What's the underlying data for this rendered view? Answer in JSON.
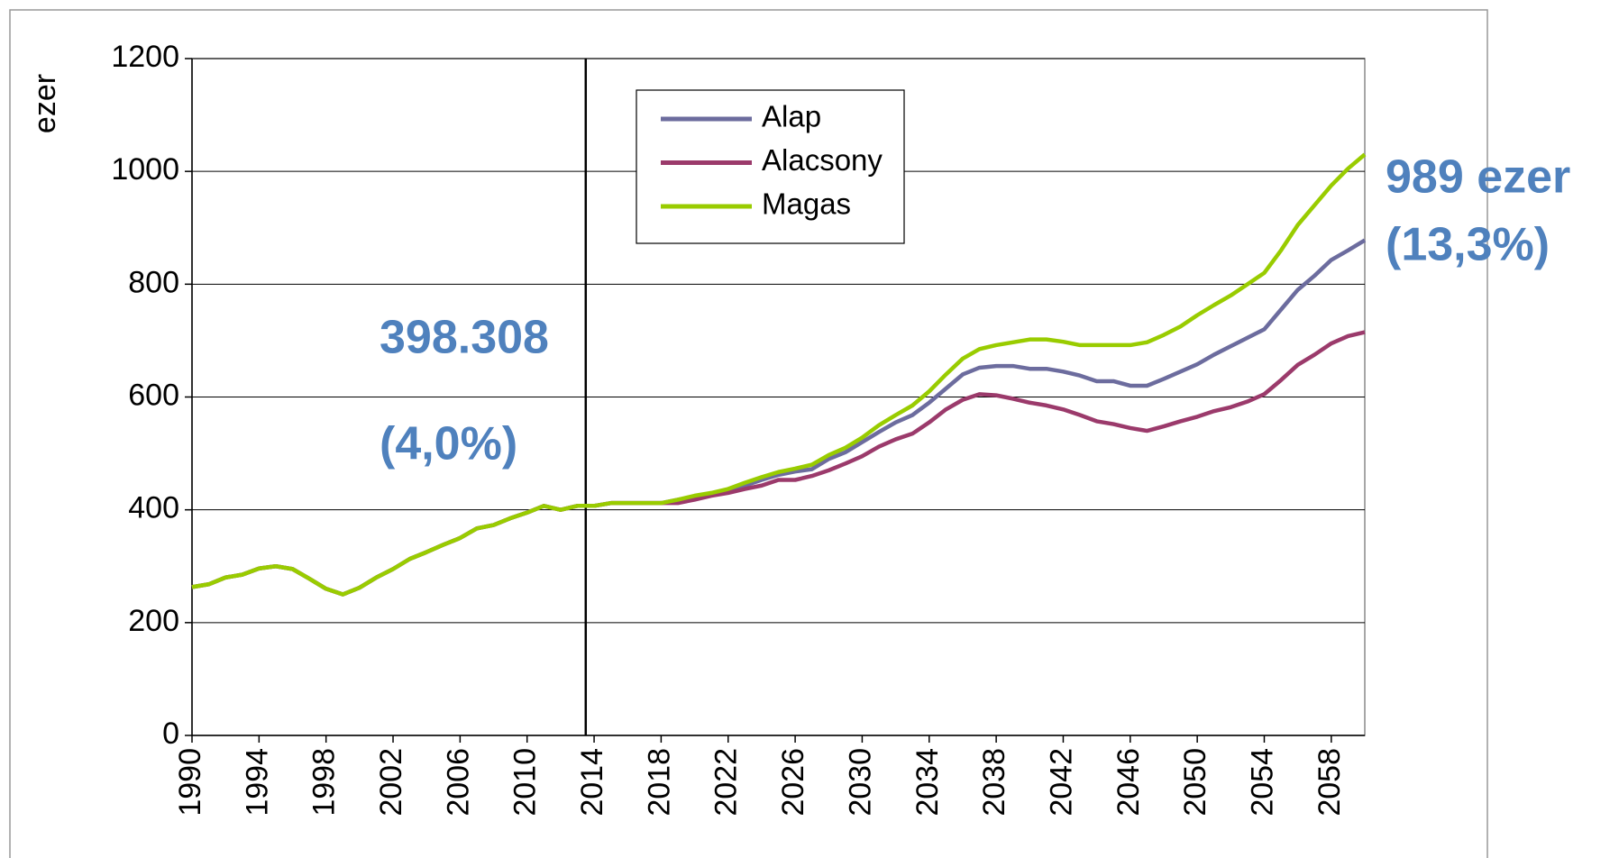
{
  "chart_data": {
    "type": "line",
    "ylabel": "ezer",
    "x": [
      1990,
      1991,
      1992,
      1993,
      1994,
      1995,
      1996,
      1997,
      1998,
      1999,
      2000,
      2001,
      2002,
      2003,
      2004,
      2005,
      2006,
      2007,
      2008,
      2009,
      2010,
      2011,
      2012,
      2013,
      2014,
      2015,
      2016,
      2017,
      2018,
      2019,
      2020,
      2021,
      2022,
      2023,
      2024,
      2025,
      2026,
      2027,
      2028,
      2029,
      2030,
      2031,
      2032,
      2033,
      2034,
      2035,
      2036,
      2037,
      2038,
      2039,
      2040,
      2041,
      2042,
      2043,
      2044,
      2045,
      2046,
      2047,
      2048,
      2049,
      2050,
      2051,
      2052,
      2053,
      2054,
      2055,
      2056,
      2057,
      2058,
      2059,
      2060
    ],
    "series": [
      {
        "name": "Alap",
        "color": "#6c6c9e",
        "values": [
          263,
          268,
          280,
          285,
          296,
          300,
          295,
          278,
          260,
          250,
          262,
          280,
          295,
          313,
          325,
          338,
          350,
          367,
          373,
          385,
          395,
          407,
          400,
          407,
          407,
          412,
          412,
          412,
          412,
          418,
          422,
          428,
          435,
          443,
          453,
          462,
          468,
          472,
          490,
          502,
          520,
          538,
          555,
          568,
          590,
          615,
          640,
          652,
          655,
          655,
          650,
          650,
          645,
          638,
          628,
          628,
          620,
          620,
          632,
          645,
          658,
          675,
          690,
          705,
          720,
          755,
          790,
          815,
          843,
          860,
          878
        ]
      },
      {
        "name": "Alacsony",
        "color": "#9b3a6b",
        "values": [
          263,
          268,
          280,
          285,
          296,
          300,
          295,
          278,
          260,
          250,
          262,
          280,
          295,
          313,
          325,
          338,
          350,
          367,
          373,
          385,
          395,
          407,
          400,
          407,
          407,
          412,
          412,
          412,
          412,
          412,
          418,
          425,
          430,
          437,
          443,
          453,
          453,
          460,
          470,
          482,
          495,
          512,
          525,
          535,
          555,
          578,
          595,
          605,
          603,
          597,
          590,
          585,
          578,
          568,
          557,
          552,
          545,
          540,
          548,
          557,
          565,
          575,
          582,
          592,
          605,
          630,
          657,
          675,
          695,
          708,
          715
        ]
      },
      {
        "name": "Magas",
        "color": "#99cc00",
        "values": [
          263,
          268,
          280,
          285,
          296,
          300,
          295,
          278,
          260,
          250,
          262,
          280,
          295,
          313,
          325,
          338,
          350,
          367,
          373,
          385,
          395,
          407,
          400,
          407,
          407,
          412,
          412,
          412,
          412,
          418,
          425,
          430,
          437,
          448,
          458,
          467,
          473,
          480,
          497,
          510,
          528,
          550,
          568,
          585,
          610,
          640,
          668,
          685,
          692,
          697,
          702,
          702,
          698,
          692,
          692,
          692,
          692,
          697,
          710,
          725,
          745,
          763,
          780,
          800,
          820,
          860,
          905,
          940,
          975,
          1005,
          1030
        ]
      }
    ],
    "xlim": [
      1990,
      2060
    ],
    "xticks": [
      1990,
      1994,
      1998,
      2002,
      2006,
      2010,
      2014,
      2018,
      2022,
      2026,
      2030,
      2034,
      2038,
      2042,
      2046,
      2050,
      2054,
      2058
    ],
    "ylim": [
      0,
      1200
    ],
    "yticks": [
      0,
      200,
      400,
      600,
      800,
      1000,
      1200
    ],
    "grid": true,
    "vline": 2013.5,
    "legend": "top-center",
    "annotations": [
      "398.308",
      "(4,0%)",
      "989 ezer",
      "(13,3%)"
    ]
  }
}
